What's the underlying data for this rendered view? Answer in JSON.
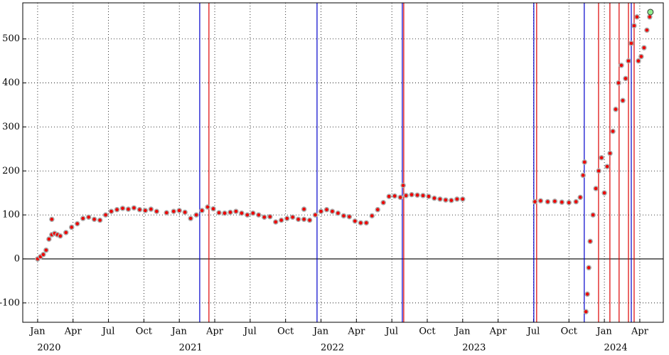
{
  "chart_data": {
    "type": "scatter",
    "xlim": [
      2019.895,
      2024.416
    ],
    "ylim": [
      -144,
      582
    ],
    "yticks": [
      -100,
      0,
      100,
      200,
      300,
      400,
      500
    ],
    "xticks": [
      {
        "value": 2020.0,
        "label": "Jan"
      },
      {
        "value": 2020.25,
        "label": "Apr"
      },
      {
        "value": 2020.5,
        "label": "Jul"
      },
      {
        "value": 2020.75,
        "label": "Oct"
      },
      {
        "value": 2021.0,
        "label": "Jan"
      },
      {
        "value": 2021.25,
        "label": "Apr"
      },
      {
        "value": 2021.5,
        "label": "Jul"
      },
      {
        "value": 2021.75,
        "label": "Oct"
      },
      {
        "value": 2022.0,
        "label": "Jan"
      },
      {
        "value": 2022.25,
        "label": "Apr"
      },
      {
        "value": 2022.5,
        "label": "Jul"
      },
      {
        "value": 2022.75,
        "label": "Oct"
      },
      {
        "value": 2023.0,
        "label": "Jan"
      },
      {
        "value": 2023.25,
        "label": "Apr"
      },
      {
        "value": 2023.5,
        "label": "Jul"
      },
      {
        "value": 2023.75,
        "label": "Oct"
      },
      {
        "value": 2024.0,
        "label": "Jan"
      },
      {
        "value": 2024.25,
        "label": "Apr"
      }
    ],
    "year_ticks": [
      {
        "value": 2020.0,
        "label": "2020"
      },
      {
        "value": 2021.0,
        "label": "2021"
      },
      {
        "value": 2022.0,
        "label": "2022"
      },
      {
        "value": 2023.0,
        "label": "2023"
      },
      {
        "value": 2024.0,
        "label": "2024"
      }
    ],
    "grid": true,
    "zero_line": true,
    "vlines": [
      {
        "x": 2021.144,
        "color": "#0000cc"
      },
      {
        "x": 2021.209,
        "color": "#dd0000"
      },
      {
        "x": 2021.972,
        "color": "#0000cc"
      },
      {
        "x": 2022.574,
        "color": "#0000cc"
      },
      {
        "x": 2022.584,
        "color": "#dd0000"
      },
      {
        "x": 2023.502,
        "color": "#0000cc"
      },
      {
        "x": 2023.522,
        "color": "#dd0000"
      },
      {
        "x": 2023.858,
        "color": "#0000cc"
      },
      {
        "x": 2023.959,
        "color": "#dd0000"
      },
      {
        "x": 2024.039,
        "color": "#dd0000"
      },
      {
        "x": 2024.104,
        "color": "#dd0000"
      },
      {
        "x": 2024.17,
        "color": "#dd0000"
      },
      {
        "x": 2024.19,
        "color": "#0000cc"
      },
      {
        "x": 2024.21,
        "color": "#dd0000"
      }
    ],
    "series": [
      {
        "color": "#ee0000",
        "x": [
          2020.0,
          2020.02,
          2020.04,
          2020.06,
          2020.08,
          2020.1,
          2020.1,
          2020.12,
          2020.14,
          2020.16,
          2020.2,
          2020.24,
          2020.28,
          2020.32,
          2020.36,
          2020.4,
          2020.44,
          2020.48,
          2020.52,
          2020.56,
          2020.6,
          2020.64,
          2020.68,
          2020.72,
          2020.76,
          2020.8,
          2020.84,
          2020.91,
          2020.96,
          2021.0,
          2021.04,
          2021.08,
          2021.12,
          2021.16,
          2021.2,
          2021.24,
          2021.28,
          2021.32,
          2021.36,
          2021.4,
          2021.44,
          2021.48,
          2021.52,
          2021.56,
          2021.6,
          2021.64,
          2021.68,
          2021.72,
          2021.76,
          2021.8,
          2021.84,
          2021.88,
          2021.88,
          2021.92,
          2021.96,
          2022.0,
          2022.04,
          2022.08,
          2022.12,
          2022.16,
          2022.2,
          2022.24,
          2022.28,
          2022.32,
          2022.36,
          2022.4,
          2022.44,
          2022.48,
          2022.52,
          2022.56,
          2022.58,
          2022.6,
          2022.64,
          2022.68,
          2022.72,
          2022.76,
          2022.8,
          2022.84,
          2022.88,
          2022.92,
          2022.96,
          2023.0,
          2023.51,
          2023.55,
          2023.6,
          2023.65,
          2023.7,
          2023.75,
          2023.8,
          2023.83,
          2023.85,
          2023.86,
          2023.87,
          2023.88,
          2023.89,
          2023.9,
          2023.92,
          2023.94,
          2023.96,
          2023.98,
          2024.0,
          2024.02,
          2024.04,
          2024.06,
          2024.08,
          2024.1,
          2024.12,
          2024.13,
          2024.15,
          2024.17,
          2024.19,
          2024.21,
          2024.23,
          2024.24,
          2024.26,
          2024.28,
          2024.3,
          2024.32
        ],
        "values": [
          0,
          5,
          10,
          20,
          45,
          55,
          90,
          58,
          55,
          52,
          60,
          72,
          80,
          92,
          95,
          90,
          88,
          100,
          108,
          112,
          115,
          113,
          116,
          112,
          110,
          113,
          108,
          105,
          108,
          110,
          106,
          92,
          100,
          110,
          118,
          114,
          105,
          104,
          106,
          108,
          104,
          100,
          104,
          100,
          95,
          96,
          84,
          88,
          92,
          95,
          90,
          90,
          113,
          88,
          100,
          108,
          112,
          108,
          104,
          98,
          96,
          86,
          82,
          82,
          98,
          112,
          128,
          142,
          143,
          140,
          167,
          144,
          146,
          145,
          144,
          142,
          138,
          136,
          134,
          133,
          136,
          136,
          130,
          132,
          130,
          131,
          129,
          128,
          130,
          140,
          190,
          220,
          -120,
          -80,
          -20,
          40,
          100,
          160,
          200,
          230,
          150,
          210,
          240,
          290,
          340,
          400,
          440,
          360,
          410,
          450,
          490,
          530,
          550,
          450,
          460,
          480,
          520,
          550
        ]
      },
      {
        "color": "#90ee90",
        "x": [
          2024.325
        ],
        "values": [
          561
        ]
      }
    ]
  }
}
